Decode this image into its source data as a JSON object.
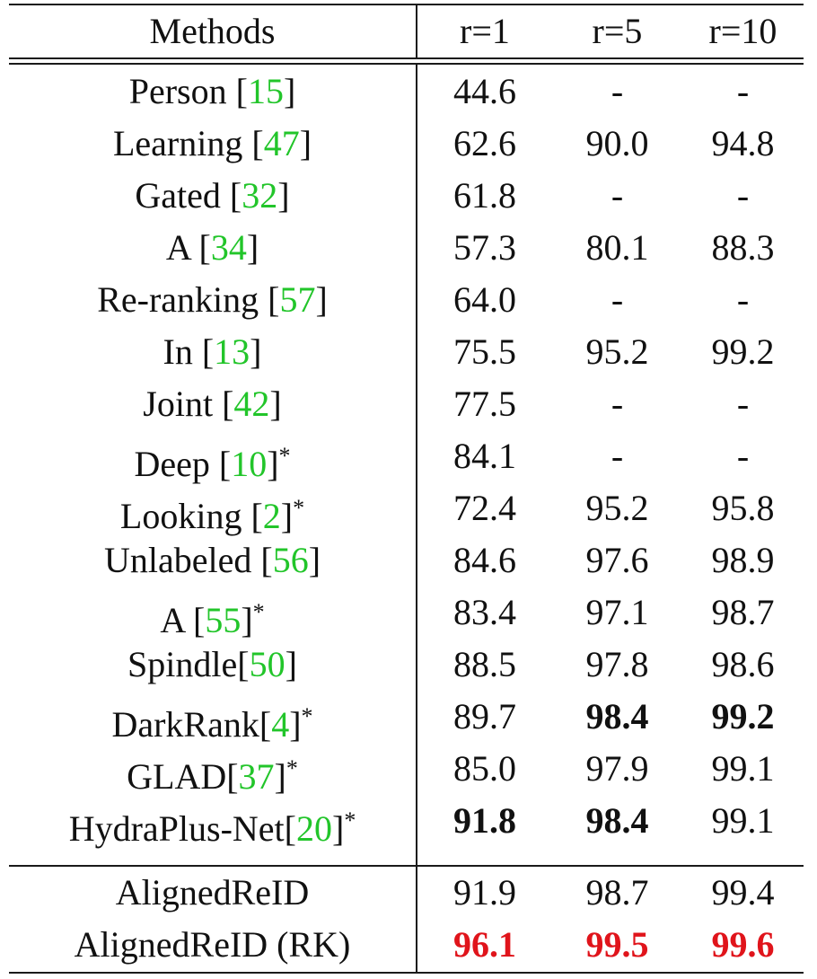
{
  "header": {
    "methods": "Methods",
    "r1": "r=1",
    "r5": "r=5",
    "r10": "r=10"
  },
  "rows": [
    {
      "name": "Person ",
      "ref": "15",
      "star": "",
      "r1": "44.6",
      "r5": "-",
      "r10": "-",
      "style": {
        "r1": "",
        "r5": "",
        "r10": ""
      }
    },
    {
      "name": "Learning ",
      "ref": "47",
      "star": "",
      "r1": "62.6",
      "r5": "90.0",
      "r10": "94.8",
      "style": {
        "r1": "",
        "r5": "",
        "r10": ""
      }
    },
    {
      "name": "Gated ",
      "ref": "32",
      "star": "",
      "r1": "61.8",
      "r5": "-",
      "r10": "-",
      "style": {
        "r1": "",
        "r5": "",
        "r10": ""
      }
    },
    {
      "name": "A ",
      "ref": "34",
      "star": "",
      "r1": "57.3",
      "r5": "80.1",
      "r10": "88.3",
      "style": {
        "r1": "",
        "r5": "",
        "r10": ""
      }
    },
    {
      "name": "Re-ranking ",
      "ref": "57",
      "star": "",
      "r1": "64.0",
      "r5": "-",
      "r10": "-",
      "style": {
        "r1": "",
        "r5": "",
        "r10": ""
      }
    },
    {
      "name": "In ",
      "ref": "13",
      "star": "",
      "r1": "75.5",
      "r5": "95.2",
      "r10": "99.2",
      "style": {
        "r1": "",
        "r5": "",
        "r10": ""
      }
    },
    {
      "name": "Joint ",
      "ref": "42",
      "star": "",
      "r1": "77.5",
      "r5": "-",
      "r10": "-",
      "style": {
        "r1": "",
        "r5": "",
        "r10": ""
      }
    },
    {
      "name": "Deep ",
      "ref": "10",
      "star": "*",
      "r1": "84.1",
      "r5": "-",
      "r10": "-",
      "style": {
        "r1": "",
        "r5": "",
        "r10": ""
      }
    },
    {
      "name": "Looking ",
      "ref": "2",
      "star": "*",
      "r1": "72.4",
      "r5": "95.2",
      "r10": "95.8",
      "style": {
        "r1": "",
        "r5": "",
        "r10": ""
      }
    },
    {
      "name": "Unlabeled ",
      "ref": "56",
      "star": "",
      "r1": "84.6",
      "r5": "97.6",
      "r10": "98.9",
      "style": {
        "r1": "",
        "r5": "",
        "r10": ""
      }
    },
    {
      "name": "A ",
      "ref": "55",
      "star": "*",
      "r1": "83.4",
      "r5": "97.1",
      "r10": "98.7",
      "style": {
        "r1": "",
        "r5": "",
        "r10": ""
      }
    },
    {
      "name": "Spindle",
      "ref": "50",
      "star": "",
      "r1": "88.5",
      "r5": "97.8",
      "r10": "98.6",
      "style": {
        "r1": "",
        "r5": "",
        "r10": ""
      }
    },
    {
      "name": "DarkRank",
      "ref": "4",
      "star": "*",
      "r1": "89.7",
      "r5": "98.4",
      "r10": "99.2",
      "style": {
        "r1": "",
        "r5": "bold",
        "r10": "bold"
      }
    },
    {
      "name": "GLAD",
      "ref": "37",
      "star": "*",
      "r1": "85.0",
      "r5": "97.9",
      "r10": "99.1",
      "style": {
        "r1": "",
        "r5": "",
        "r10": ""
      }
    },
    {
      "name": "HydraPlus-Net",
      "ref": "20",
      "star": "*",
      "r1": "91.8",
      "r5": "98.4",
      "r10": "99.1",
      "style": {
        "r1": "bold",
        "r5": "bold",
        "r10": ""
      }
    },
    {
      "name": "AlignedReID",
      "ref": "",
      "star": "",
      "r1": "91.9",
      "r5": "98.7",
      "r10": "99.4",
      "style": {
        "r1": "",
        "r5": "",
        "r10": ""
      }
    },
    {
      "name": "AlignedReID (RK)",
      "ref": "",
      "star": "",
      "r1": "96.1",
      "r5": "99.5",
      "r10": "99.6",
      "style": {
        "r1": "red",
        "r5": "red",
        "r10": "red"
      }
    }
  ],
  "colors": {
    "reference": "#22c52a",
    "best": "#e0141b",
    "text": "#111111"
  }
}
